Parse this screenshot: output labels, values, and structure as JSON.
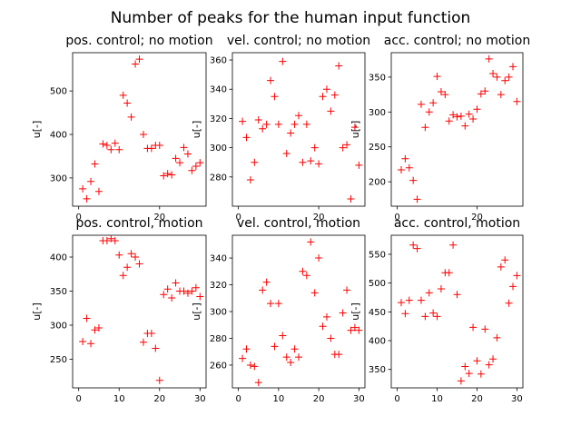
{
  "figure": {
    "suptitle": "Number of peaks for the human input function"
  },
  "chart_data": [
    {
      "type": "scatter",
      "title": "pos. control; no motion",
      "ylabel": "u[-]",
      "xlim": [
        -1.5,
        31.5
      ],
      "ylim": [
        235,
        588
      ],
      "x_ticks": [
        0,
        20
      ],
      "y_ticks": [
        300,
        400,
        500
      ],
      "marker": "+",
      "color": "#ff0000",
      "x": [
        1,
        2,
        3,
        4,
        5,
        6,
        7,
        8,
        9,
        10,
        11,
        12,
        13,
        14,
        15,
        16,
        17,
        18,
        19,
        20,
        21,
        22,
        23,
        24,
        25,
        26,
        27,
        28,
        29,
        30
      ],
      "y": [
        275,
        252,
        292,
        332,
        269,
        378,
        375,
        365,
        380,
        365,
        490,
        472,
        440,
        562,
        573,
        400,
        368,
        368,
        375,
        375,
        305,
        310,
        307,
        345,
        335,
        370,
        355,
        317,
        327,
        335
      ]
    },
    {
      "type": "scatter",
      "title": "vel. control; no motion",
      "ylabel": "u[-]",
      "xlim": [
        -1.5,
        31.5
      ],
      "ylim": [
        260,
        365
      ],
      "x_ticks": [
        0,
        20
      ],
      "y_ticks": [
        280,
        300,
        320,
        340,
        360
      ],
      "marker": "+",
      "color": "#ff0000",
      "x": [
        1,
        2,
        3,
        4,
        5,
        6,
        7,
        8,
        9,
        10,
        11,
        12,
        13,
        14,
        15,
        16,
        17,
        18,
        19,
        20,
        21,
        22,
        23,
        24,
        25,
        26,
        27,
        28,
        29,
        30
      ],
      "y": [
        318,
        307,
        278,
        290,
        319,
        313,
        316,
        346,
        335,
        316,
        359,
        296,
        310,
        316,
        322,
        290,
        316,
        291,
        300,
        289,
        335,
        340,
        325,
        336,
        356,
        300,
        302,
        265,
        314,
        288
      ]
    },
    {
      "type": "scatter",
      "title": "acc. control; no motion",
      "ylabel": "u[-]",
      "xlim": [
        -1.5,
        31.5
      ],
      "ylim": [
        165,
        385
      ],
      "x_ticks": [
        0,
        20
      ],
      "y_ticks": [
        200,
        250,
        300,
        350
      ],
      "marker": "+",
      "color": "#ff0000",
      "x": [
        1,
        2,
        3,
        4,
        5,
        6,
        7,
        8,
        9,
        10,
        11,
        12,
        13,
        14,
        15,
        16,
        17,
        18,
        19,
        20,
        21,
        22,
        23,
        24,
        25,
        26,
        27,
        28,
        29,
        30
      ],
      "y": [
        217,
        233,
        220,
        202,
        175,
        311,
        278,
        300,
        313,
        351,
        329,
        325,
        287,
        296,
        293,
        294,
        280,
        297,
        290,
        304,
        326,
        330,
        376,
        355,
        350,
        325,
        345,
        350,
        365,
        315
      ]
    },
    {
      "type": "scatter",
      "title": "pos. control, motion",
      "ylabel": "u[-]",
      "xlim": [
        -1.5,
        31.5
      ],
      "ylim": [
        208,
        432
      ],
      "x_ticks": [
        0,
        10,
        20,
        30
      ],
      "y_ticks": [
        250,
        300,
        350,
        400
      ],
      "marker": "+",
      "color": "#ff0000",
      "x": [
        1,
        2,
        3,
        4,
        5,
        6,
        7,
        8,
        9,
        10,
        11,
        12,
        13,
        14,
        15,
        16,
        17,
        18,
        19,
        20,
        21,
        22,
        23,
        24,
        25,
        26,
        27,
        28,
        29,
        30
      ],
      "y": [
        276,
        310,
        273,
        293,
        296,
        424,
        424,
        427,
        424,
        403,
        373,
        385,
        405,
        400,
        390,
        275,
        288,
        288,
        266,
        219,
        345,
        353,
        340,
        362,
        350,
        350,
        347,
        350,
        355,
        342
      ]
    },
    {
      "type": "scatter",
      "title": "vel. control, motion",
      "ylabel": "u[-]",
      "xlim": [
        -1.5,
        31.5
      ],
      "ylim": [
        243,
        357
      ],
      "x_ticks": [
        0,
        10,
        20,
        30
      ],
      "y_ticks": [
        260,
        280,
        300,
        320,
        340
      ],
      "marker": "+",
      "color": "#ff0000",
      "x": [
        1,
        2,
        3,
        4,
        5,
        6,
        7,
        8,
        9,
        10,
        11,
        12,
        13,
        14,
        15,
        16,
        17,
        18,
        19,
        20,
        21,
        22,
        23,
        24,
        25,
        26,
        27,
        28,
        29,
        30
      ],
      "y": [
        265,
        272,
        260,
        259,
        247,
        316,
        322,
        306,
        274,
        306,
        282,
        266,
        262,
        272,
        266,
        330,
        327,
        352,
        314,
        340,
        289,
        296,
        280,
        268,
        268,
        299,
        316,
        286,
        288,
        286
      ]
    },
    {
      "type": "scatter",
      "title": "acc. control, motion",
      "ylabel": "u[-]",
      "xlim": [
        -1.5,
        31.5
      ],
      "ylim": [
        318,
        583
      ],
      "x_ticks": [
        0,
        10,
        20,
        30
      ],
      "y_ticks": [
        350,
        400,
        450,
        500,
        550
      ],
      "marker": "+",
      "color": "#ff0000",
      "x": [
        1,
        2,
        3,
        4,
        5,
        6,
        7,
        8,
        9,
        10,
        11,
        12,
        13,
        14,
        15,
        16,
        17,
        18,
        19,
        20,
        21,
        22,
        23,
        24,
        25,
        26,
        27,
        28,
        29,
        30
      ],
      "y": [
        466,
        447,
        470,
        566,
        560,
        470,
        442,
        483,
        448,
        442,
        490,
        518,
        518,
        566,
        480,
        330,
        355,
        343,
        423,
        365,
        342,
        420,
        358,
        368,
        405,
        528,
        540,
        465,
        494,
        513
      ]
    }
  ]
}
